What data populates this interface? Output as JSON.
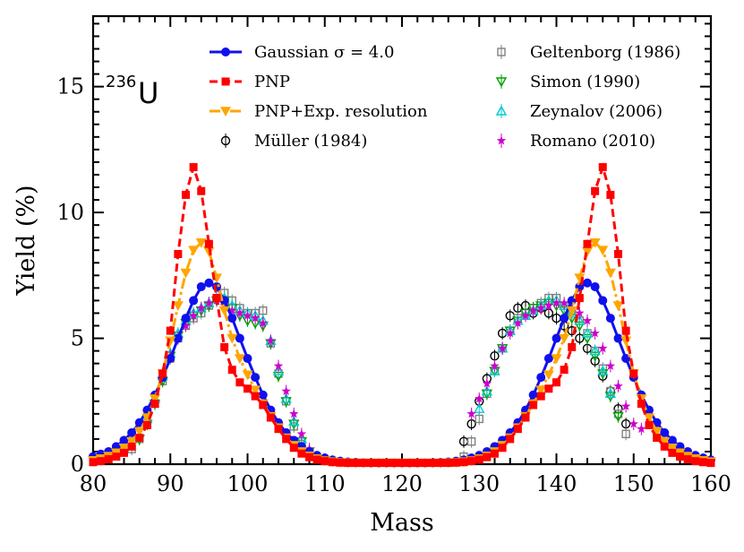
{
  "chart_data": {
    "type": "line",
    "title": "236U",
    "title_parts": {
      "mass_number": "236",
      "element": "U"
    },
    "xlabel": "Mass",
    "ylabel": "Yield (%)",
    "xlim": [
      80,
      160
    ],
    "ylim": [
      0,
      17.8
    ],
    "xticks": [
      80,
      90,
      100,
      110,
      120,
      130,
      140,
      150,
      160
    ],
    "yticks": [
      0,
      5,
      10,
      15
    ],
    "grid": false,
    "legend": {
      "columns": 2,
      "left_labels": [
        "Gaussian σ = 4.0",
        "PNP",
        "PNP+Exp. resolution",
        "Müller (1984)"
      ],
      "right_labels": [
        "Geltenborg (1986)",
        "Simon (1990)",
        "Zeynalov (2006)",
        "Romano (2010)"
      ]
    },
    "series": [
      {
        "name": "Gaussian σ = 4.0",
        "color": "#1010ee",
        "style": "solid-line-circle",
        "x": [
          80,
          81,
          82,
          83,
          84,
          85,
          86,
          87,
          88,
          89,
          90,
          91,
          92,
          93,
          94,
          95,
          96,
          97,
          98,
          99,
          100,
          101,
          102,
          103,
          104,
          105,
          106,
          107,
          108,
          109,
          110,
          111,
          112,
          113,
          114,
          115,
          116,
          117,
          118,
          119,
          120,
          121,
          122,
          123,
          124,
          125,
          126,
          127,
          128,
          129,
          130,
          131,
          132,
          133,
          134,
          135,
          136,
          137,
          138,
          139,
          140,
          141,
          142,
          143,
          144,
          145,
          146,
          147,
          148,
          149,
          150,
          151,
          152,
          153,
          154,
          155,
          156,
          157,
          158,
          159,
          160
        ],
        "values": [
          0.3,
          0.4,
          0.5,
          0.7,
          0.95,
          1.25,
          1.65,
          2.15,
          2.75,
          3.45,
          4.2,
          5.0,
          5.8,
          6.5,
          7.05,
          7.2,
          7.05,
          6.5,
          5.8,
          5.0,
          4.2,
          3.45,
          2.75,
          2.15,
          1.65,
          1.25,
          0.95,
          0.7,
          0.5,
          0.35,
          0.25,
          0.17,
          0.12,
          0.09,
          0.07,
          0.06,
          0.05,
          0.05,
          0.05,
          0.05,
          0.05,
          0.05,
          0.05,
          0.05,
          0.06,
          0.07,
          0.09,
          0.12,
          0.17,
          0.25,
          0.35,
          0.5,
          0.7,
          0.95,
          1.25,
          1.65,
          2.15,
          2.75,
          3.45,
          4.2,
          5.0,
          5.8,
          6.5,
          7.05,
          7.2,
          7.05,
          6.5,
          5.8,
          5.0,
          4.2,
          3.45,
          2.75,
          2.15,
          1.65,
          1.25,
          0.95,
          0.7,
          0.5,
          0.35,
          0.25,
          0.17
        ]
      },
      {
        "name": "PNP",
        "color": "#ff0000",
        "style": "dashed-line-square",
        "x": [
          80,
          81,
          82,
          83,
          84,
          85,
          86,
          87,
          88,
          89,
          90,
          91,
          92,
          93,
          94,
          95,
          96,
          97,
          98,
          99,
          100,
          101,
          102,
          103,
          104,
          105,
          106,
          107,
          108,
          109,
          110,
          111,
          112,
          113,
          114,
          115,
          116,
          117,
          118,
          119,
          120,
          121,
          122,
          123,
          124,
          125,
          126,
          127,
          128,
          129,
          130,
          131,
          132,
          133,
          134,
          135,
          136,
          137,
          138,
          139,
          140,
          141,
          142,
          143,
          144,
          145,
          146,
          147,
          148,
          149,
          150,
          151,
          152,
          153,
          154,
          155,
          156,
          157,
          158,
          159,
          160
        ],
        "values": [
          0.08,
          0.12,
          0.2,
          0.3,
          0.45,
          0.7,
          1.05,
          1.55,
          2.4,
          3.6,
          5.3,
          8.35,
          10.7,
          11.8,
          10.85,
          8.75,
          6.6,
          4.65,
          3.75,
          3.25,
          3.0,
          2.7,
          2.35,
          1.85,
          1.4,
          1.0,
          0.65,
          0.42,
          0.28,
          0.18,
          0.12,
          0.08,
          0.06,
          0.05,
          0.05,
          0.05,
          0.05,
          0.05,
          0.05,
          0.05,
          0.05,
          0.05,
          0.05,
          0.05,
          0.05,
          0.05,
          0.05,
          0.06,
          0.08,
          0.12,
          0.18,
          0.28,
          0.42,
          0.65,
          1.0,
          1.4,
          1.85,
          2.35,
          2.7,
          3.0,
          3.25,
          3.75,
          4.65,
          6.6,
          8.75,
          10.85,
          11.8,
          10.7,
          8.35,
          5.3,
          3.6,
          2.4,
          1.55,
          1.05,
          0.7,
          0.45,
          0.3,
          0.2,
          0.12,
          0.08,
          0.05
        ]
      },
      {
        "name": "PNP+Exp. resolution",
        "color": "#ffa500",
        "style": "dashdot-line-triangle-down",
        "x": [
          80,
          81,
          82,
          83,
          84,
          85,
          86,
          87,
          88,
          89,
          90,
          91,
          92,
          93,
          94,
          95,
          96,
          97,
          98,
          99,
          100,
          101,
          102,
          103,
          104,
          105,
          106,
          107,
          108,
          109,
          110,
          111,
          112,
          113,
          114,
          115,
          116,
          117,
          118,
          119,
          120,
          121,
          122,
          123,
          124,
          125,
          126,
          127,
          128,
          129,
          130,
          131,
          132,
          133,
          134,
          135,
          136,
          137,
          138,
          139,
          140,
          141,
          142,
          143,
          144,
          145,
          146,
          147,
          148,
          149,
          150,
          151,
          152,
          153,
          154,
          155,
          156,
          157,
          158,
          159,
          160
        ],
        "values": [
          0.15,
          0.22,
          0.32,
          0.45,
          0.65,
          0.9,
          1.3,
          1.85,
          2.6,
          3.6,
          4.9,
          6.3,
          7.6,
          8.5,
          8.8,
          8.45,
          7.4,
          6.1,
          5.0,
          4.2,
          3.55,
          2.95,
          2.4,
          1.9,
          1.45,
          1.05,
          0.75,
          0.5,
          0.33,
          0.22,
          0.14,
          0.1,
          0.07,
          0.06,
          0.05,
          0.05,
          0.05,
          0.05,
          0.05,
          0.05,
          0.05,
          0.05,
          0.05,
          0.05,
          0.05,
          0.05,
          0.06,
          0.07,
          0.1,
          0.14,
          0.22,
          0.33,
          0.5,
          0.75,
          1.05,
          1.45,
          1.9,
          2.4,
          2.95,
          3.55,
          4.2,
          5.0,
          6.1,
          7.4,
          8.45,
          8.8,
          8.5,
          7.6,
          6.3,
          4.9,
          3.6,
          2.6,
          1.85,
          1.3,
          0.9,
          0.65,
          0.45,
          0.32,
          0.22,
          0.15,
          0.1
        ]
      },
      {
        "name": "Müller (1984)",
        "color": "#000000",
        "style": "open-circle",
        "x": [
          128,
          129,
          130,
          131,
          132,
          133,
          134,
          135,
          136,
          137,
          138,
          139,
          140,
          141,
          142,
          143,
          144,
          145,
          146,
          147,
          148,
          149
        ],
        "values": [
          0.9,
          1.6,
          2.5,
          3.4,
          4.3,
          5.2,
          5.9,
          6.2,
          6.3,
          6.0,
          6.2,
          6.0,
          5.8,
          5.5,
          5.3,
          5.0,
          4.6,
          4.1,
          3.5,
          2.9,
          2.2,
          1.6
        ]
      },
      {
        "name": "Geltenborg (1986)",
        "color": "#808080",
        "style": "open-square",
        "x": [
          85,
          86,
          87,
          88,
          89,
          90,
          91,
          92,
          93,
          94,
          95,
          96,
          97,
          98,
          99,
          100,
          101,
          102,
          103,
          104,
          105,
          106,
          107,
          108,
          128,
          129,
          130,
          131,
          132,
          133,
          134,
          135,
          136,
          137,
          138,
          139,
          140,
          141,
          142,
          143,
          144,
          145,
          146,
          147,
          148,
          149
        ],
        "values": [
          0.6,
          1.0,
          1.6,
          2.4,
          3.3,
          4.2,
          5.0,
          5.5,
          5.8,
          6.0,
          6.3,
          6.6,
          6.8,
          6.5,
          6.2,
          6.0,
          6.0,
          6.1,
          4.8,
          3.6,
          2.5,
          1.5,
          0.8,
          0.4,
          0.3,
          0.9,
          1.8,
          2.8,
          3.7,
          4.6,
          5.3,
          5.8,
          6.0,
          6.2,
          6.4,
          6.6,
          6.6,
          6.3,
          6.0,
          5.7,
          5.2,
          4.5,
          3.8,
          2.9,
          2.0,
          1.2
        ]
      },
      {
        "name": "Simon (1990)",
        "color": "#00a000",
        "style": "open-triangle-down",
        "x": [
          86,
          87,
          88,
          89,
          90,
          91,
          92,
          93,
          94,
          95,
          96,
          97,
          98,
          99,
          100,
          101,
          102,
          103,
          104,
          105,
          106,
          107,
          108,
          131,
          132,
          133,
          134,
          135,
          136,
          137,
          138,
          139,
          140,
          141,
          142,
          143,
          144,
          145,
          146,
          147,
          148
        ],
        "values": [
          1.0,
          1.6,
          2.4,
          3.3,
          4.3,
          5.1,
          5.6,
          5.9,
          6.1,
          6.3,
          6.5,
          6.5,
          6.2,
          5.9,
          5.7,
          5.6,
          5.5,
          4.8,
          3.5,
          2.5,
          1.6,
          0.9,
          0.5,
          2.8,
          3.7,
          4.6,
          5.3,
          5.7,
          6.0,
          6.2,
          6.3,
          6.4,
          6.3,
          6.1,
          5.8,
          5.5,
          5.0,
          4.3,
          3.6,
          2.7,
          1.9
        ]
      },
      {
        "name": "Zeynalov (2006)",
        "color": "#00cccc",
        "style": "open-triangle-up",
        "x": [
          87,
          88,
          89,
          90,
          91,
          92,
          93,
          94,
          95,
          96,
          97,
          98,
          99,
          100,
          101,
          102,
          103,
          104,
          105,
          106,
          107,
          130,
          131,
          132,
          133,
          134,
          135,
          136,
          137,
          138,
          139,
          140,
          141,
          142,
          143,
          144,
          145,
          146,
          147
        ],
        "values": [
          1.8,
          2.6,
          3.5,
          4.4,
          5.2,
          5.7,
          6.0,
          6.2,
          6.4,
          6.6,
          6.6,
          6.3,
          6.1,
          6.0,
          5.9,
          5.7,
          4.9,
          3.7,
          2.6,
          1.7,
          1.0,
          2.2,
          2.9,
          3.7,
          4.6,
          5.3,
          5.7,
          5.9,
          6.1,
          6.3,
          6.5,
          6.5,
          6.3,
          6.0,
          5.7,
          5.2,
          4.5,
          3.7,
          2.8
        ]
      },
      {
        "name": "Romano (2010)",
        "color": "#cc00cc",
        "style": "star",
        "x": [
          89,
          90,
          91,
          92,
          93,
          94,
          95,
          96,
          97,
          98,
          99,
          100,
          101,
          102,
          103,
          104,
          105,
          106,
          107,
          108,
          129,
          130,
          131,
          132,
          133,
          134,
          135,
          136,
          137,
          138,
          139,
          140,
          141,
          142,
          143,
          144,
          145,
          146,
          147,
          148,
          149,
          150,
          151
        ],
        "values": [
          3.6,
          4.3,
          5.0,
          5.5,
          5.9,
          6.2,
          6.4,
          6.5,
          6.3,
          6.1,
          6.0,
          5.9,
          5.8,
          5.6,
          4.9,
          3.9,
          2.9,
          2.0,
          1.2,
          0.6,
          2.0,
          2.6,
          3.2,
          3.9,
          4.6,
          5.2,
          5.6,
          5.9,
          6.1,
          6.2,
          6.3,
          6.4,
          6.4,
          6.2,
          6.0,
          5.7,
          5.2,
          4.6,
          3.9,
          3.1,
          2.3,
          1.6,
          1.4
        ]
      }
    ]
  }
}
